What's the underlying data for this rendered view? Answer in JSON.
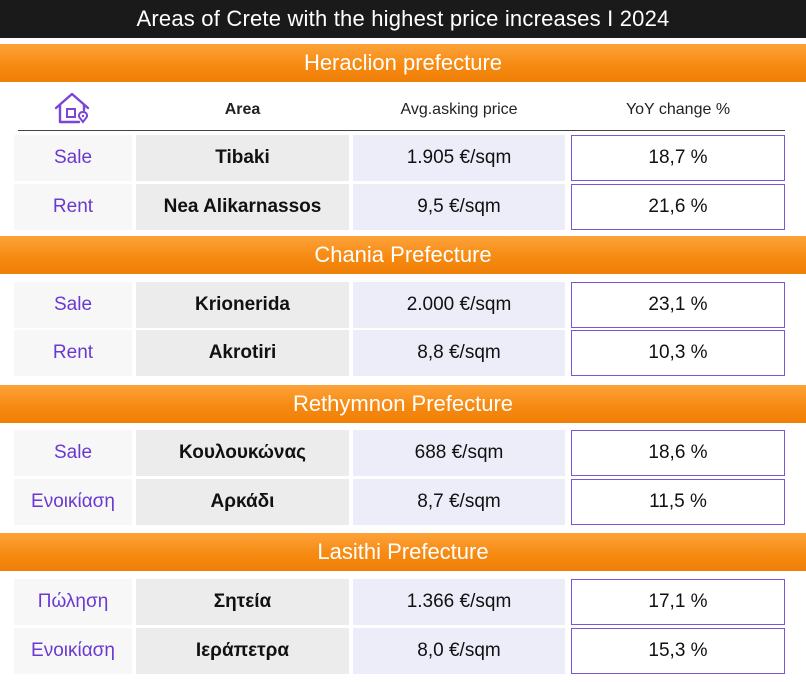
{
  "title": "Areas of Crete with the highest price increases I 2024",
  "columns": {
    "area": "Area",
    "price": "Avg.asking price",
    "yoy": "YoY change %"
  },
  "icon": "house-icon",
  "colors": {
    "title_bg": "#1a1a1a",
    "section_bg": "#f68a12",
    "type_text": "#6a3ad0",
    "yoy_border": "#7a55d6"
  },
  "sections": [
    {
      "name": "Heraclion prefecture",
      "rows": [
        {
          "type": "Sale",
          "area": "Tibaki",
          "price": "1.905 €/sqm",
          "yoy": "18,7 %"
        },
        {
          "type": "Rent",
          "area": "Nea Alikarnassos",
          "price": "9,5 €/sqm",
          "yoy": "21,6 %"
        }
      ]
    },
    {
      "name": "Chania Prefecture",
      "rows": [
        {
          "type": "Sale",
          "area": "Krionerida",
          "price": "2.000 €/sqm",
          "yoy": "23,1 %"
        },
        {
          "type": "Rent",
          "area": "Akrotiri",
          "price": "8,8 €/sqm",
          "yoy": "10,3 %"
        }
      ]
    },
    {
      "name": "Rethymnon Prefecture",
      "rows": [
        {
          "type": "Sale",
          "area": "Κουλουκώνας",
          "price": "688 €/sqm",
          "yoy": "18,6 %"
        },
        {
          "type": "Ενοικίαση",
          "area": "Αρκάδι",
          "price": "8,7 €/sqm",
          "yoy": "11,5 %"
        }
      ]
    },
    {
      "name": "Lasithi Prefecture",
      "rows": [
        {
          "type": "Πώληση",
          "area": "Σητεία",
          "price": "1.366 €/sqm",
          "yoy": "17,1 %"
        },
        {
          "type": "Ενοικίαση",
          "area": "Ιεράπετρα",
          "price": "8,0 €/sqm",
          "yoy": "15,3 %"
        }
      ]
    }
  ]
}
